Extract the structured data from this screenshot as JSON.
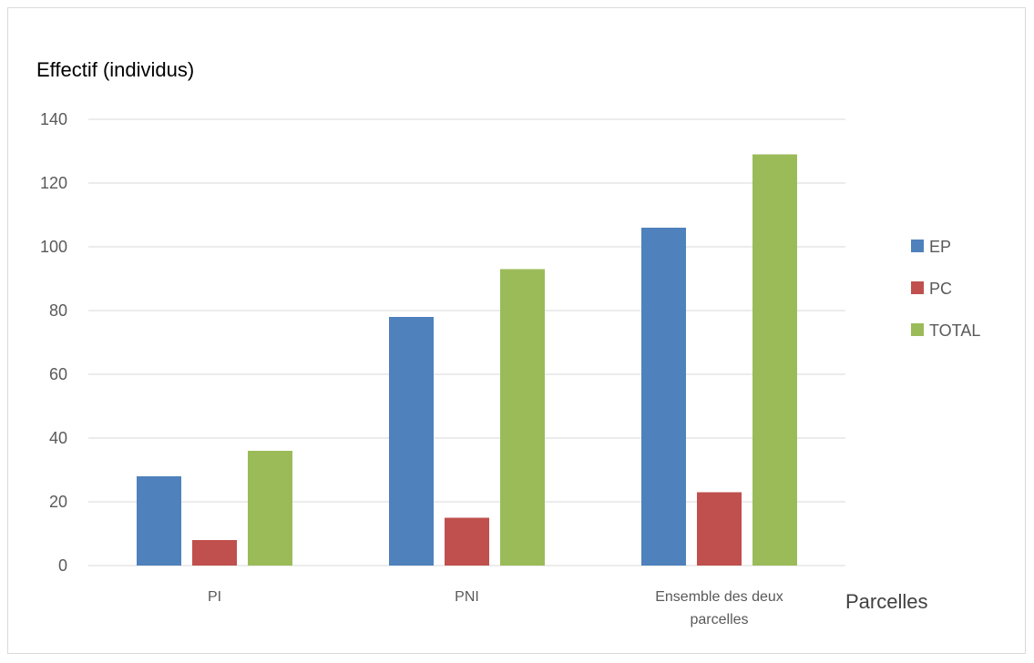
{
  "chart_data": {
    "type": "bar",
    "title": "",
    "ylabel": "Effectif (individus)",
    "xlabel": "Parcelles",
    "categories": [
      "PI",
      "PNI",
      "Ensemble des deux parcelles"
    ],
    "series": [
      {
        "name": "EP",
        "values": [
          28,
          78,
          106
        ],
        "color": "#4F81BD"
      },
      {
        "name": "PC",
        "values": [
          8,
          15,
          23
        ],
        "color": "#C0504D"
      },
      {
        "name": "TOTAL",
        "values": [
          36,
          93,
          129
        ],
        "color": "#9BBB59"
      }
    ],
    "ylim": [
      0,
      140
    ],
    "yticks": [
      0,
      20,
      40,
      60,
      80,
      100,
      120,
      140
    ],
    "grid": true,
    "legend_position": "right"
  }
}
